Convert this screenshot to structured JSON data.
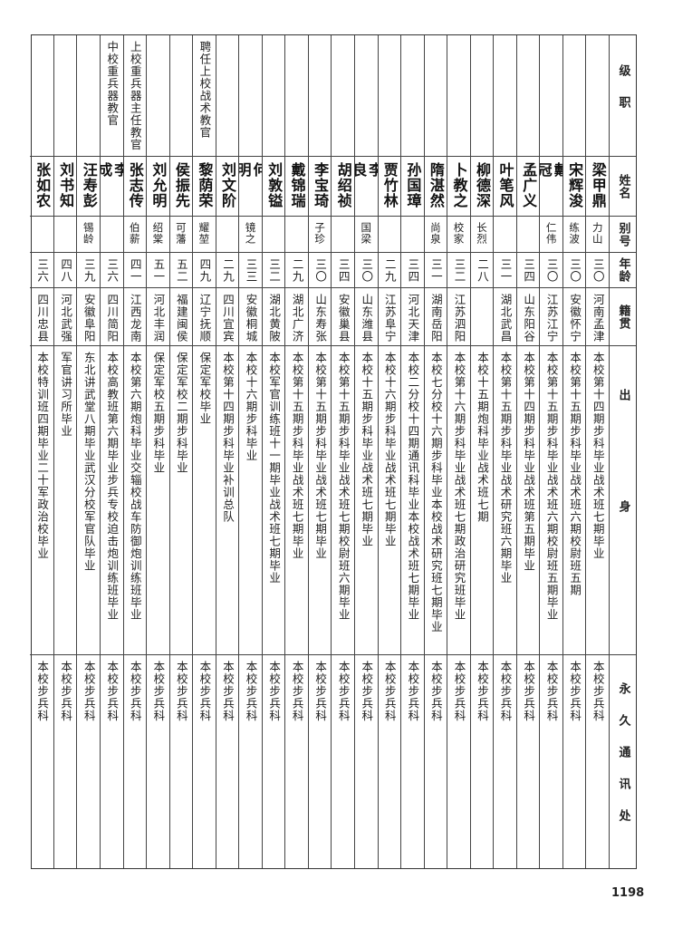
{
  "headers": {
    "rank": "级职",
    "name": "姓名",
    "alias": "别号",
    "age": "年龄",
    "native": "籍贯",
    "origin": "出身",
    "address": "永久通讯处"
  },
  "rows": [
    {
      "rank": "",
      "name": "梁甲鼎",
      "alias": "力山",
      "age": "三〇",
      "native": "河南孟津",
      "origin": "本校第十四期步科毕业战术班七期毕业",
      "address": "本校步兵科"
    },
    {
      "rank": "",
      "name": "宋辉浚",
      "alias": "练波",
      "age": "三〇",
      "native": "安徽怀宁",
      "origin": "本校第十五期步科毕业战术班六期校尉班五期",
      "address": "本校步兵科"
    },
    {
      "rank": "",
      "name": "戴冠",
      "alias": "仁伟",
      "age": "三〇",
      "native": "江苏江宁",
      "origin": "本校第十五期步科毕业战术班六期校尉班五期毕业",
      "address": "本校步兵科"
    },
    {
      "rank": "",
      "name": "孟广义",
      "alias": "",
      "age": "三四",
      "native": "山东阳谷",
      "origin": "本校第十四期步科毕业战术班第五期毕业",
      "address": "本校步兵科"
    },
    {
      "rank": "",
      "name": "叶笔风",
      "alias": "",
      "age": "三一",
      "native": "湖北武昌",
      "origin": "本校第十五期步科毕业战术研究班六期毕业",
      "address": "本校步兵科"
    },
    {
      "rank": "",
      "name": "柳德深",
      "alias": "长烈",
      "age": "二八",
      "native": "",
      "origin": "本校十五期炮科毕业战术班七期",
      "address": "本校步兵科"
    },
    {
      "rank": "",
      "name": "卜教之",
      "alias": "校家",
      "age": "三二",
      "native": "江苏泗阳",
      "origin": "本校第十六期步科毕业战术班七期政治研究班毕业",
      "address": "本校步兵科"
    },
    {
      "rank": "",
      "name": "隋湛然",
      "alias": "尚泉",
      "age": "三一",
      "native": "湖南岳阳",
      "origin": "本校七分校十六期步科毕业本校战术研究班七期毕业",
      "address": "本校步兵科"
    },
    {
      "rank": "",
      "name": "孙国璋",
      "alias": "",
      "age": "三四",
      "native": "河北天津",
      "origin": "本校二分校十四期通讯科毕业本校战术班七期毕业",
      "address": "本校步兵科"
    },
    {
      "rank": "",
      "name": "贾竹林",
      "alias": "",
      "age": "二九",
      "native": "江苏阜宁",
      "origin": "本校十六期步科毕业战术班七期毕业",
      "address": "本校步兵科"
    },
    {
      "rank": "",
      "name": "李良",
      "alias": "国梁",
      "age": "三〇",
      "native": "山东潍县",
      "origin": "本校十五期步科毕业战术班七期毕业",
      "address": "本校步兵科"
    },
    {
      "rank": "",
      "name": "胡绍祯",
      "alias": "",
      "age": "三四",
      "native": "安徽巢县",
      "origin": "本校第十五期步科毕业战术班七期校尉班六期毕业",
      "address": "本校步兵科"
    },
    {
      "rank": "",
      "name": "李宝琦",
      "alias": "子珍",
      "age": "三〇",
      "native": "山东寿张",
      "origin": "本校第十五期步科毕业战术班七期毕业",
      "address": "本校步兵科"
    },
    {
      "rank": "",
      "name": "戴锦瑞",
      "alias": "",
      "age": "二九",
      "native": "湖北广济",
      "origin": "本校第十五期步科毕业战术班七期毕业",
      "address": "本校步兵科"
    },
    {
      "rank": "",
      "name": "刘敦镒",
      "alias": "",
      "age": "三二",
      "native": "湖北黄陂",
      "origin": "本校军官训练班十一期毕业战术班七期毕业",
      "address": "本校步兵科"
    },
    {
      "rank": "",
      "name": "何明",
      "alias": "镜之",
      "age": "三三",
      "native": "安徽桐城",
      "origin": "本校十六期步科毕业",
      "address": "本校步兵科"
    },
    {
      "rank": "",
      "name": "刘文阶",
      "alias": "",
      "age": "二九",
      "native": "四川宜宾",
      "origin": "本校第十四期步科毕业补训总队",
      "address": "本校步兵科"
    },
    {
      "rank": "聘任上校战术教官",
      "name": "黎荫荣",
      "alias": "耀堃",
      "age": "四九",
      "native": "辽宁抚顺",
      "origin": "保定军校毕业",
      "address": "本校步兵科"
    },
    {
      "rank": "",
      "name": "侯振先",
      "alias": "可藩",
      "age": "五二",
      "native": "福建闽侯",
      "origin": "保定军校二期步科毕业",
      "address": "本校步兵科"
    },
    {
      "rank": "",
      "name": "刘允明",
      "alias": "绍棠",
      "age": "五一",
      "native": "河北丰润",
      "origin": "保定军校五期步科毕业",
      "address": "本校步兵科"
    },
    {
      "rank": "上校重兵器主任教官",
      "name": "张志传",
      "alias": "伯薪",
      "age": "四一",
      "native": "江西龙南",
      "origin": "本校第六期炮科毕业交辎校战车防御炮训练班毕业",
      "address": "本校步兵科"
    },
    {
      "rank": "中校重兵器教官",
      "name": "李成",
      "alias": "",
      "age": "三六",
      "native": "四川简阳",
      "origin": "本校高教班第六期毕业步兵专校迫击炮训练班毕业",
      "address": "本校步兵科"
    },
    {
      "rank": "",
      "name": "汪寿彭",
      "alias": "锡龄",
      "age": "三九",
      "native": "安徽阜阳",
      "origin": "东北讲武堂八期毕业武汉分校军官队毕业",
      "address": "本校步兵科"
    },
    {
      "rank": "",
      "name": "刘书知",
      "alias": "",
      "age": "四八",
      "native": "河北武强",
      "origin": "军官讲习所毕业",
      "address": "本校步兵科"
    },
    {
      "rank": "",
      "name": "张如农",
      "alias": "",
      "age": "三六",
      "native": "四川忠县",
      "origin": "本校特训班四期毕业二十军政治校毕业",
      "address": "本校步兵科"
    }
  ],
  "page_number": "1198"
}
